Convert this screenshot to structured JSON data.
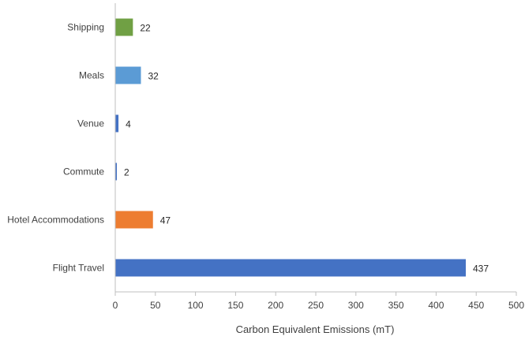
{
  "chart_data": {
    "type": "bar",
    "orientation": "horizontal",
    "title": "",
    "xlabel": "Carbon Equivalent Emissions (mT)",
    "ylabel": "",
    "xlim": [
      0,
      500
    ],
    "x_ticks": [
      0,
      50,
      100,
      150,
      200,
      250,
      300,
      350,
      400,
      450,
      500
    ],
    "grid": false,
    "legend": "none",
    "categories": [
      "Shipping",
      "Meals",
      "Venue",
      "Commute",
      "Hotel Accommodations",
      "Flight Travel"
    ],
    "values": [
      22,
      32,
      4,
      2,
      47,
      437
    ],
    "colors": [
      "#70a044",
      "#5b9bd5",
      "#4472c4",
      "#4472c4",
      "#ed7d31",
      "#4472c4"
    ],
    "axis_color": "#bfbfbf"
  }
}
